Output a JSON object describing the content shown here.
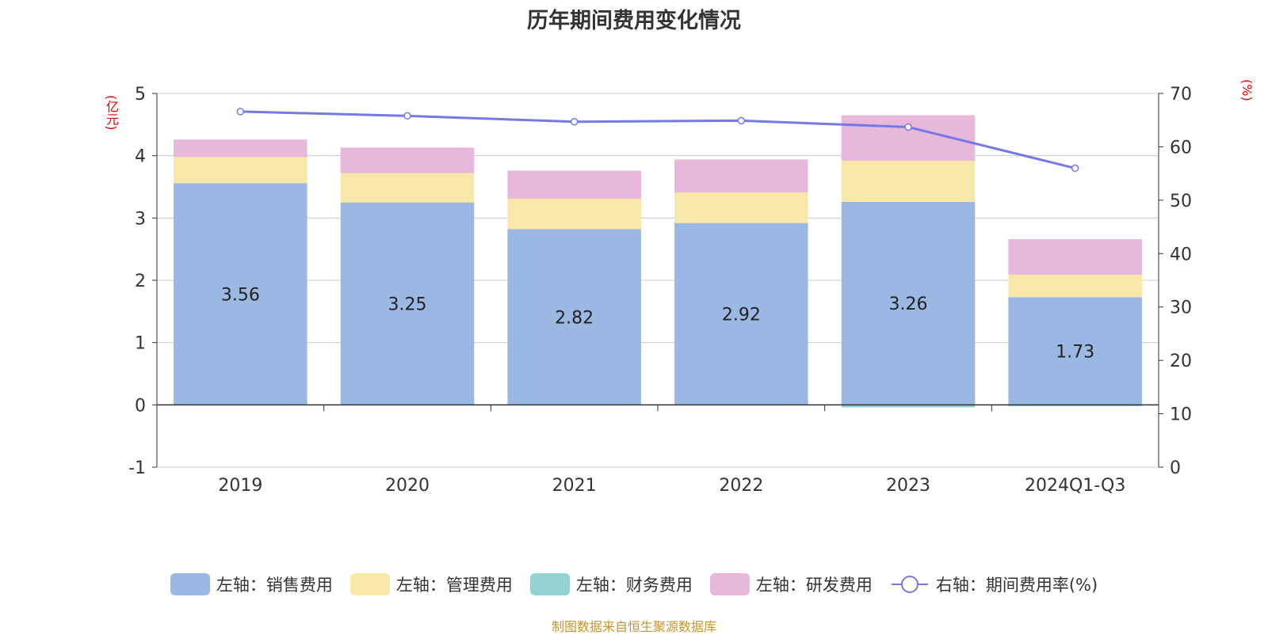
{
  "chart_data": {
    "type": "bar",
    "title": "历年期间费用变化情况",
    "source": "制图数据来自恒生聚源数据库",
    "left_axis": {
      "unit": "(亿元)",
      "ylim": [
        -1,
        5
      ],
      "ticks": [
        "-1",
        "0",
        "1",
        "2",
        "3",
        "4",
        "5"
      ]
    },
    "right_axis": {
      "unit": "(%)",
      "ylim": [
        0,
        70
      ],
      "ticks": [
        "0",
        "10",
        "20",
        "30",
        "40",
        "50",
        "60",
        "70"
      ]
    },
    "categories": [
      "2019",
      "2020",
      "2021",
      "2022",
      "2023",
      "2024Q1-Q3"
    ],
    "stacked": true,
    "grid": true,
    "legend_position": "bottom",
    "series": [
      {
        "name": "左轴：销售费用",
        "type": "bar",
        "axis": "left",
        "color": "#9bb8e2",
        "values": [
          3.56,
          3.25,
          2.82,
          2.92,
          3.26,
          1.73
        ],
        "labels": [
          "3.56",
          "3.25",
          "2.82",
          "2.92",
          "3.26",
          "1.73"
        ]
      },
      {
        "name": "左轴：管理费用",
        "type": "bar",
        "axis": "left",
        "color": "#f7e7a8",
        "values": [
          0.42,
          0.47,
          0.49,
          0.49,
          0.66,
          0.36
        ]
      },
      {
        "name": "左轴：财务费用",
        "type": "bar",
        "axis": "left",
        "color": "#93d3d3",
        "values": [
          0.0,
          0.0,
          0.0,
          0.0,
          -0.04,
          -0.02
        ]
      },
      {
        "name": "左轴：研发费用",
        "type": "bar",
        "axis": "left",
        "color": "#e7b8d9",
        "values": [
          0.28,
          0.41,
          0.45,
          0.53,
          0.73,
          0.57
        ]
      },
      {
        "name": "右轴：期间费用率(%)",
        "type": "line",
        "axis": "right",
        "color": "#7579e7",
        "values": [
          66.6,
          65.8,
          64.7,
          64.9,
          63.7,
          56.0
        ]
      }
    ]
  }
}
